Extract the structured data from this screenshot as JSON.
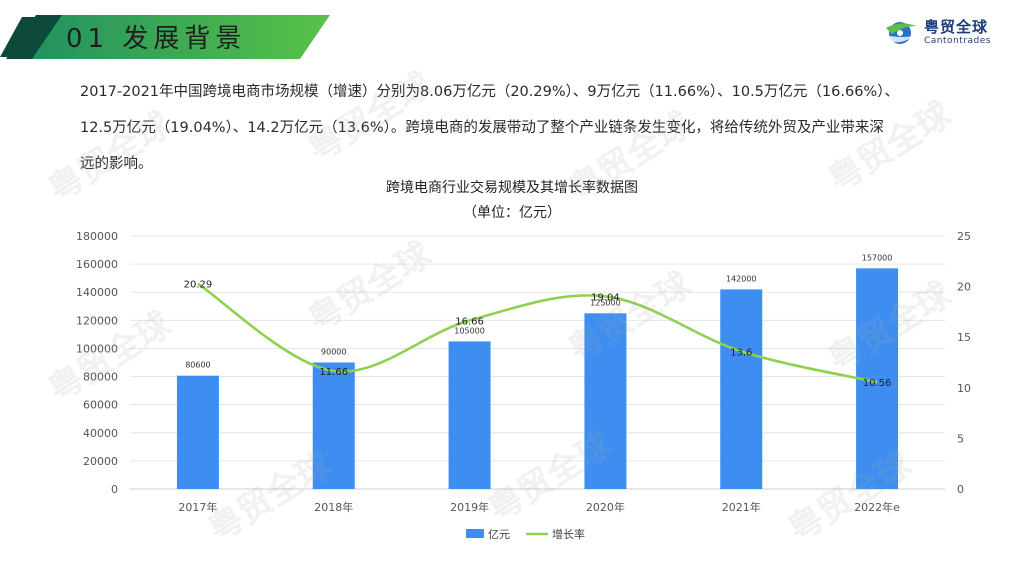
{
  "header": {
    "title": "01 发展背景",
    "accent_color": "#2e9e60",
    "dark_color": "#0e4a3c"
  },
  "logo": {
    "name": "粤贸全球",
    "sub": "Cantontrades"
  },
  "paragraph": {
    "lines": [
      "2017-2021年中国跨境电商市场规模（增速）分别为8.06万亿元（20.29%）、9万亿元（11.66%）、10.5万亿元（16.66%）、",
      "12.5万亿元（19.04%）、14.2万亿元（13.6%）。跨境电商的发展带动了整个产业链条发生变化，将给传统外贸及产业带来深",
      "远的影响。"
    ]
  },
  "watermark_text": "粤贸全球",
  "chart_data": {
    "type": "bar",
    "title": "跨境电商行业交易规模及其增长率数据图",
    "subtitle": "（单位：亿元）",
    "categories": [
      "2017年",
      "2018年",
      "2019年",
      "2020年",
      "2021年",
      "2022年e"
    ],
    "series": [
      {
        "name": "亿元",
        "type": "bar",
        "axis": "left",
        "color": "#3d8ef0",
        "values": [
          80600,
          90000,
          105000,
          125000,
          142000,
          157000
        ]
      },
      {
        "name": "增长率",
        "type": "line",
        "axis": "right",
        "color": "#8fd14f",
        "values": [
          20.29,
          11.66,
          16.66,
          19.04,
          13.6,
          10.56
        ]
      }
    ],
    "y_left": {
      "min": 0,
      "max": 180000,
      "step": 20000
    },
    "y_right": {
      "min": 0,
      "max": 25,
      "step": 5
    },
    "grid": true,
    "legend_position": "bottom"
  }
}
